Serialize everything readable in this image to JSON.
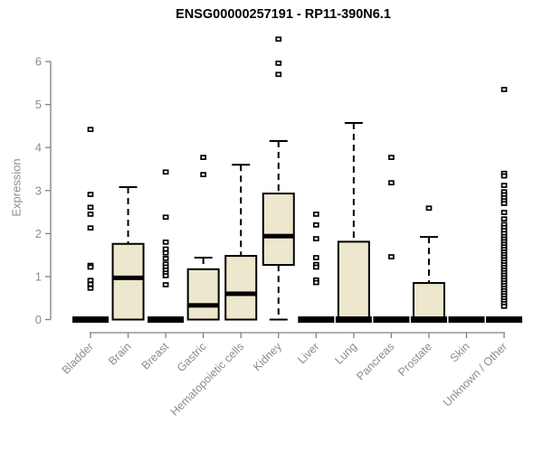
{
  "title": "ENSG00000257191 - RP11-390N6.1",
  "chart_data": {
    "type": "boxplot",
    "title": "ENSG00000257191 - RP11-390N6.1",
    "ylabel": "Expression",
    "xlabel": "",
    "ylim": [
      0,
      6.6
    ],
    "yticks": [
      0,
      1,
      2,
      3,
      4,
      5,
      6
    ],
    "grid": false,
    "legend": "none",
    "colors": {
      "box_fill": "#ece7cd",
      "box_stroke": "#000000",
      "median": "#000000",
      "axis": "#808080",
      "tick_text": "#8c8c8c",
      "title_text": "#000000",
      "background": "#ffffff"
    },
    "categories": [
      "Bladder",
      "Brain",
      "Breast",
      "Gastric",
      "Hematopoietic cells",
      "Kidney",
      "Liver",
      "Lung",
      "Pancreas",
      "Prostate",
      "Skin",
      "Unknown / Other"
    ],
    "series": [
      {
        "name": "Bladder",
        "whislo": 0,
        "q1": 0,
        "med": 0,
        "q3": 0,
        "whishi": 0,
        "outliers": [
          4.42,
          2.91,
          2.61,
          2.45,
          2.13,
          1.26,
          1.22,
          0.91,
          0.82,
          0.73
        ]
      },
      {
        "name": "Brain",
        "whislo": 0,
        "q1": 0,
        "med": 0.97,
        "q3": 1.76,
        "whishi": 3.08,
        "outliers": []
      },
      {
        "name": "Breast",
        "whislo": 0,
        "q1": 0,
        "med": 0,
        "q3": 0,
        "whishi": 0,
        "outliers": [
          3.43,
          2.38,
          1.8,
          1.64,
          1.55,
          1.42,
          1.29,
          1.22,
          1.15,
          1.08,
          1.02,
          0.81
        ]
      },
      {
        "name": "Gastric",
        "whislo": 0,
        "q1": 0,
        "med": 0.33,
        "q3": 1.17,
        "whishi": 1.44,
        "outliers": [
          3.77,
          3.37
        ]
      },
      {
        "name": "Hematopoietic cells",
        "whislo": 0,
        "q1": 0,
        "med": 0.6,
        "q3": 1.48,
        "whishi": 3.6,
        "outliers": []
      },
      {
        "name": "Kidney",
        "whislo": 0,
        "q1": 1.27,
        "med": 1.94,
        "q3": 2.93,
        "whishi": 4.15,
        "outliers": [
          6.52,
          5.96,
          5.7
        ]
      },
      {
        "name": "Liver",
        "whislo": 0,
        "q1": 0,
        "med": 0,
        "q3": 0,
        "whishi": 0,
        "outliers": [
          2.45,
          2.2,
          1.88,
          1.44,
          1.28,
          1.22,
          0.92,
          0.86
        ]
      },
      {
        "name": "Lung",
        "whislo": 0,
        "q1": 0,
        "med": 0.02,
        "q3": 1.81,
        "whishi": 4.57,
        "outliers": []
      },
      {
        "name": "Pancreas",
        "whislo": 0,
        "q1": 0,
        "med": 0,
        "q3": 0,
        "whishi": 0,
        "outliers": [
          3.77,
          3.18,
          1.46
        ]
      },
      {
        "name": "Prostate",
        "whislo": 0,
        "q1": 0,
        "med": 0.02,
        "q3": 0.85,
        "whishi": 1.92,
        "outliers": [
          2.59
        ]
      },
      {
        "name": "Skin",
        "whislo": 0,
        "q1": 0,
        "med": 0,
        "q3": 0,
        "whishi": 0,
        "outliers": []
      },
      {
        "name": "Unknown / Other",
        "whislo": 0,
        "q1": 0,
        "med": 0,
        "q3": 0,
        "whishi": 0,
        "outliers": [
          5.35,
          3.4,
          3.34,
          3.12,
          2.97,
          2.9,
          2.83,
          2.76,
          2.7,
          2.49,
          2.34,
          2.21,
          2.14,
          2.07,
          2.0,
          1.93,
          1.87,
          1.81,
          1.75,
          1.69,
          1.63,
          1.57,
          1.51,
          1.45,
          1.39,
          1.33,
          1.27,
          1.21,
          1.15,
          1.09,
          1.03,
          0.97,
          0.91,
          0.85,
          0.79,
          0.73,
          0.67,
          0.61,
          0.55,
          0.49,
          0.43,
          0.37,
          0.31
        ]
      }
    ]
  }
}
